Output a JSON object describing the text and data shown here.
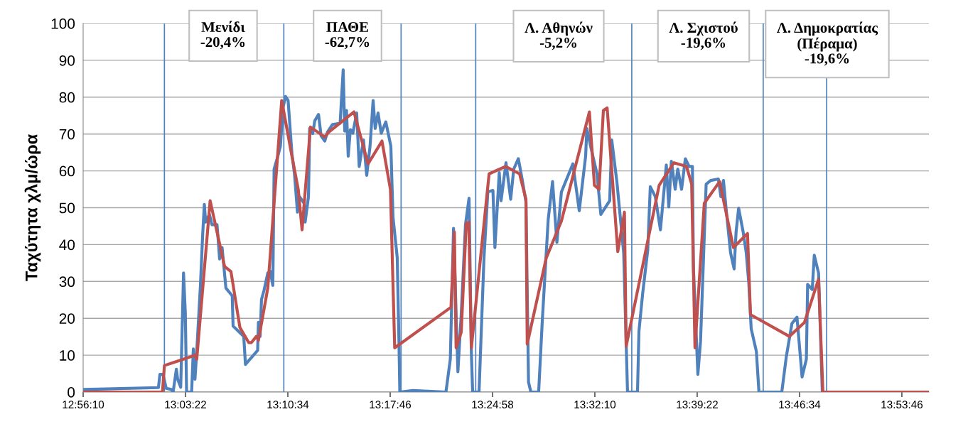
{
  "chart_data": {
    "type": "line",
    "ylabel": "Ταχύτητα χλμ/ώρα",
    "xlim": [
      12.9361,
      13.9278
    ],
    "ylim": [
      0,
      100
    ],
    "yticks": [
      0,
      10,
      20,
      30,
      40,
      50,
      60,
      70,
      80,
      90,
      100
    ],
    "xticks": [
      {
        "value": 12.9361,
        "label": "12:56:10"
      },
      {
        "value": 13.0561,
        "label": "13:03:22"
      },
      {
        "value": 13.1761,
        "label": "13:10:34"
      },
      {
        "value": 13.2961,
        "label": "13:17:46"
      },
      {
        "value": 13.4161,
        "label": "13:24:58"
      },
      {
        "value": 13.5361,
        "label": "13:32:10"
      },
      {
        "value": 13.6561,
        "label": "13:39:22"
      },
      {
        "value": 13.7761,
        "label": "13:46:34"
      },
      {
        "value": 13.8961,
        "label": "13:53:46"
      }
    ],
    "grid": "y",
    "legend": false,
    "marker": "none",
    "line_style": "solid",
    "series": [
      {
        "color": "#4f81bd",
        "x": [
          12.9361,
          13.0244,
          13.0261,
          13.0297,
          13.0335,
          13.0394,
          13.0416,
          13.0454,
          13.0469,
          13.0505,
          13.0538,
          13.0559,
          13.0574,
          13.0633,
          13.0653,
          13.0672,
          13.0693,
          13.0736,
          13.0761,
          13.0782,
          13.0797,
          13.0841,
          13.0871,
          13.0931,
          13.0961,
          13.099,
          13.1035,
          13.1109,
          13.1119,
          13.1244,
          13.1264,
          13.1407,
          13.1416,
          13.1436,
          13.1452,
          13.1481,
          13.1526,
          13.1556,
          13.1585,
          13.16,
          13.1644,
          13.1674,
          13.1704,
          13.1734,
          13.1764,
          13.1809,
          13.1839,
          13.1874,
          13.1898,
          13.1952,
          13.1964,
          13.2003,
          13.2017,
          13.2053,
          13.2077,
          13.2121,
          13.2151,
          13.2194,
          13.2225,
          13.2285,
          13.2374,
          13.241,
          13.2428,
          13.2449,
          13.2469,
          13.2494,
          13.2523,
          13.2568,
          13.2598,
          13.2648,
          13.2686,
          13.2725,
          13.2761,
          13.2785,
          13.2819,
          13.2856,
          13.291,
          13.2969,
          13.2994,
          13.3044,
          13.3064,
          13.3074,
          13.3228,
          13.3615,
          13.3666,
          13.3704,
          13.3755,
          13.3794,
          13.3844,
          13.3886,
          13.3913,
          13.3928,
          13.4003,
          13.4061,
          13.4106,
          13.4166,
          13.4189,
          13.424,
          13.4261,
          13.4319,
          13.4374,
          13.441,
          13.4464,
          13.4508,
          13.4553,
          13.4583,
          13.4611,
          13.4702,
          13.4746,
          13.4814,
          13.4865,
          13.4916,
          13.4969,
          13.5103,
          13.5178,
          13.5253,
          13.5267,
          13.5311,
          13.5386,
          13.5431,
          13.5535,
          13.5559,
          13.5619,
          13.5699,
          13.5744,
          13.5861,
          13.5878,
          13.5922,
          13.5981,
          13.6011,
          13.607,
          13.613,
          13.6199,
          13.6228,
          13.6258,
          13.6303,
          13.6333,
          13.6378,
          13.6422,
          13.6466,
          13.6505,
          13.6517,
          13.6569,
          13.66,
          13.6666,
          13.6719,
          13.6809,
          13.6839,
          13.6869,
          13.6898,
          13.6952,
          13.6994,
          13.7017,
          13.7047,
          13.71,
          13.7136,
          13.7166,
          13.7194,
          13.7255,
          13.7285,
          13.7553,
          13.7606,
          13.7672,
          13.7731,
          13.7791,
          13.7841,
          13.7856,
          13.791,
          13.7934,
          13.7984,
          13.8028,
          13.8074
        ],
        "values": [
          0.7,
          1.2,
          4.8,
          4.8,
          1.0,
          0.7,
          0,
          6.2,
          3.5,
          1.3,
          32.3,
          21.4,
          0,
          0,
          11.7,
          3.5,
          11,
          28.9,
          42,
          50.9,
          46.1,
          48.2,
          45.4,
          45.4,
          36.1,
          39.2,
          28.2,
          26.1,
          17.9,
          15.1,
          7.5,
          11.3,
          18.9,
          15.1,
          25.1,
          27.5,
          32.3,
          32.7,
          28.9,
          60.5,
          64,
          66.7,
          77.1,
          80.2,
          79.1,
          64.7,
          59.2,
          48.8,
          53,
          51.2,
          46.1,
          53,
          71.5,
          70.1,
          73.6,
          75.3,
          69.5,
          68.1,
          70.5,
          72.6,
          72.9,
          87.4,
          70.8,
          76.4,
          64,
          71.2,
          70.2,
          75.7,
          61.2,
          68.4,
          58.8,
          66.7,
          79.1,
          71.5,
          75.7,
          70.2,
          73.3,
          66.7,
          47.5,
          36.4,
          13.7,
          0,
          0.4,
          0,
          8.9,
          44.4,
          5.5,
          21,
          45.4,
          52.6,
          10.6,
          0,
          0,
          36.4,
          54.3,
          54.7,
          39.2,
          59.5,
          51.9,
          62.2,
          52.3,
          60.5,
          63.3,
          57.8,
          51.6,
          2.7,
          0,
          0,
          19.9,
          46.8,
          57.1,
          40.6,
          54.3,
          61.9,
          49.2,
          64,
          71.5,
          66.7,
          59.2,
          48.2,
          51.9,
          68.4,
          57.1,
          37.8,
          0,
          0,
          16.5,
          26.8,
          38.5,
          55.7,
          53,
          44,
          61.6,
          50.2,
          62.6,
          55,
          60.5,
          55,
          63.3,
          61.2,
          61.2,
          33.7,
          4.8,
          13.7,
          56.4,
          57.4,
          57.8,
          53,
          57.4,
          50.2,
          37.8,
          33.4,
          43.4,
          49.9,
          43.4,
          37.8,
          29.6,
          17.2,
          11,
          0,
          0,
          9.6,
          18.6,
          20.3,
          4.1,
          8.9,
          29.2,
          27.8,
          37.1,
          32.3,
          0,
          0
        ]
      },
      {
        "color": "#c0504d",
        "x": [
          12.9361,
          13.0291,
          13.0314,
          13.0678,
          13.0693,
          13.085,
          13.1019,
          13.1094,
          13.1199,
          13.1303,
          13.1333,
          13.1392,
          13.1416,
          13.1526,
          13.1689,
          13.1809,
          13.1883,
          13.1928,
          13.2026,
          13.2194,
          13.224,
          13.2536,
          13.2702,
          13.2865,
          13.2964,
          13.3014,
          13.3674,
          13.3714,
          13.3734,
          13.3794,
          13.3853,
          13.3883,
          13.3913,
          13.4121,
          13.4314,
          13.4478,
          13.4553,
          13.4568,
          13.4791,
          13.4969,
          13.5297,
          13.5356,
          13.541,
          13.5461,
          13.5505,
          13.563,
          13.5708,
          13.5728,
          13.6115,
          13.6288,
          13.6436,
          13.6496,
          13.6535,
          13.6644,
          13.6824,
          13.6986,
          13.7151,
          13.7186,
          13.7642,
          13.7819,
          13.7984,
          13.8035,
          13.9278
        ],
        "values": [
          0,
          0,
          7.2,
          10,
          8.9,
          51.9,
          34.1,
          32.7,
          17.5,
          13.4,
          13.4,
          15.1,
          14,
          28.2,
          79.1,
          64,
          55,
          44,
          71.9,
          69.2,
          70.5,
          76,
          61.9,
          68.1,
          55,
          12,
          23,
          43.4,
          12,
          16.2,
          45.7,
          46.1,
          12,
          59.2,
          61.2,
          59.2,
          52.3,
          13,
          36.4,
          46.4,
          76,
          56.1,
          55,
          76.4,
          77.1,
          38.1,
          48.8,
          12.4,
          56.1,
          62.2,
          61.2,
          56.4,
          12,
          51.2,
          57.1,
          39.2,
          43,
          21,
          15.1,
          18.9,
          30.6,
          0,
          0
        ]
      }
    ],
    "ref_lines": [
      {
        "axis": "x",
        "value": 13.0314,
        "color": "#4f81bd"
      },
      {
        "axis": "x",
        "value": 13.1714,
        "color": "#4f81bd"
      },
      {
        "axis": "x",
        "value": 13.3089,
        "color": "#4f81bd"
      },
      {
        "axis": "x",
        "value": 13.3964,
        "color": "#4f81bd"
      },
      {
        "axis": "x",
        "value": 13.5794,
        "color": "#4f81bd"
      },
      {
        "axis": "x",
        "value": 13.7335,
        "color": "#4f81bd"
      },
      {
        "axis": "x",
        "value": 13.8079,
        "color": "#4f81bd"
      }
    ],
    "annotations": [
      "Μενίδι\n-20,4%",
      "ΠΑΘΕ\n-62,7%",
      "Λ. Αθηνών\n-5,2%",
      "Λ. Σχιστού\n-19,6%",
      "Λ. Δημοκρατίας\n(Πέραμα)\n-19,6%"
    ]
  }
}
